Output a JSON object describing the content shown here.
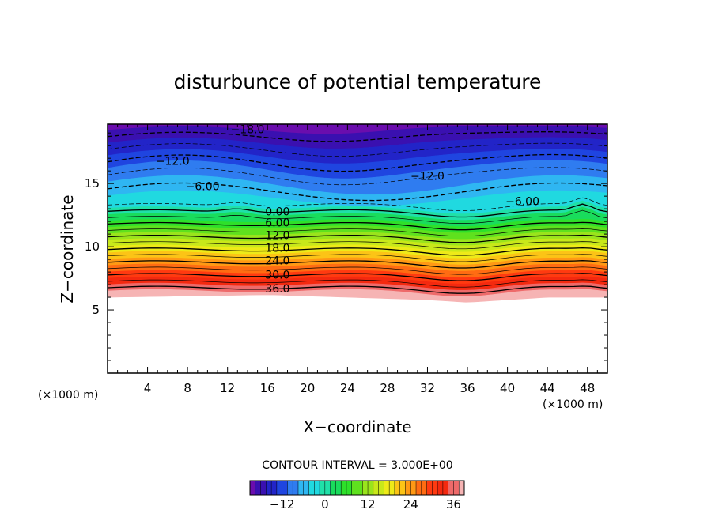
{
  "chart_data": {
    "type": "contour",
    "title": "disturbunce of potential temperature",
    "xlabel": "X−coordinate",
    "ylabel": "Z−coordinate",
    "x_unit": "(×1000 m)",
    "y_unit": "(×1000 m)",
    "xlim": [
      0,
      50
    ],
    "ylim": [
      0,
      19.7
    ],
    "x_ticks": [
      4,
      8,
      12,
      16,
      20,
      24,
      28,
      32,
      36,
      40,
      44,
      48
    ],
    "x_tick_labels": [
      "4",
      "8",
      "12",
      "16",
      "20",
      "24",
      "28",
      "32",
      "36",
      "40",
      "44",
      "48"
    ],
    "y_ticks": [
      5,
      10,
      15
    ],
    "y_tick_labels": [
      "5",
      "10",
      "15"
    ],
    "contour_interval_text": "CONTOUR INTERVAL = 3.000E+00",
    "contour_interval": 3.0,
    "contour_labels": [
      {
        "text": "−18.0",
        "x": 14,
        "z": 19.3
      },
      {
        "text": "−12.0",
        "x": 6.5,
        "z": 16.8
      },
      {
        "text": "−12.0",
        "x": 32,
        "z": 15.6
      },
      {
        "text": "−6.00",
        "x": 9.5,
        "z": 14.8
      },
      {
        "text": "−6.00",
        "x": 41.5,
        "z": 13.6
      },
      {
        "text": "0.00",
        "x": 17,
        "z": 12.8
      },
      {
        "text": "6.00",
        "x": 17,
        "z": 11.9
      },
      {
        "text": "12.0",
        "x": 17,
        "z": 10.9
      },
      {
        "text": "18.0",
        "x": 17,
        "z": 9.9
      },
      {
        "text": "24.0",
        "x": 17,
        "z": 8.9
      },
      {
        "text": "30.0",
        "x": 17,
        "z": 7.8
      },
      {
        "text": "36.0",
        "x": 17,
        "z": 6.7
      }
    ],
    "field_description_levels": [
      -21,
      -18,
      -15,
      -12,
      -9,
      -6,
      -3,
      0,
      3,
      6,
      9,
      12,
      15,
      18,
      21,
      24,
      27,
      30,
      33,
      36,
      39
    ],
    "level_colors": [
      "#6a0dad",
      "#3a10b0",
      "#2224c8",
      "#1f45e0",
      "#2f7cf0",
      "#2fb6f2",
      "#20d9e0",
      "#20e0a8",
      "#19dc5c",
      "#2ee02a",
      "#5fe11e",
      "#9ae41c",
      "#c8e81a",
      "#eeea18",
      "#fcc416",
      "#ff9914",
      "#ff6c12",
      "#ff3a10",
      "#f4290f",
      "#ee6a6a",
      "#f6b4b4"
    ],
    "colorbar": {
      "min": -21,
      "max": 39,
      "tick_values": [
        -12,
        0,
        12,
        24,
        36
      ],
      "tick_labels": [
        "−12",
        "0",
        "12",
        "24",
        "36"
      ]
    },
    "field_extent_z": {
      "bottom_at_x": [
        [
          0,
          6.0
        ],
        [
          16,
          6.2
        ],
        [
          24,
          6.0
        ],
        [
          32,
          5.8
        ],
        [
          36,
          5.6
        ],
        [
          40,
          5.8
        ],
        [
          44,
          6.0
        ],
        [
          50,
          6.0
        ]
      ]
    }
  }
}
